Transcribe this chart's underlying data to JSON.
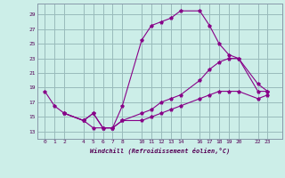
{
  "xlabel": "Windchill (Refroidissement éolien,°C)",
  "ylabel": "",
  "bg_color": "#cceee8",
  "line_color": "#880088",
  "grid_color": "#99bbbb",
  "xticks": [
    0,
    1,
    2,
    4,
    5,
    6,
    7,
    8,
    10,
    11,
    12,
    13,
    14,
    16,
    17,
    18,
    19,
    20,
    22,
    23
  ],
  "yticks": [
    13,
    15,
    17,
    19,
    21,
    23,
    25,
    27,
    29
  ],
  "xlim": [
    -0.8,
    24.5
  ],
  "ylim": [
    12.0,
    30.5
  ],
  "series": [
    {
      "x": [
        0,
        1,
        2,
        4,
        5,
        6,
        7,
        8,
        10,
        11,
        12,
        13,
        14,
        16,
        17,
        18,
        19,
        20,
        22,
        23
      ],
      "y": [
        18.5,
        16.5,
        15.5,
        14.5,
        13.5,
        13.5,
        13.5,
        16.5,
        25.5,
        27.5,
        28.0,
        28.5,
        29.5,
        29.5,
        27.5,
        25.0,
        23.5,
        23.0,
        19.5,
        18.5
      ]
    },
    {
      "x": [
        2,
        4,
        5,
        6,
        7,
        8,
        10,
        11,
        12,
        13,
        14,
        16,
        17,
        18,
        19,
        20,
        22,
        23
      ],
      "y": [
        15.5,
        14.5,
        15.5,
        13.5,
        13.5,
        14.5,
        15.5,
        16.0,
        17.0,
        17.5,
        18.0,
        20.0,
        21.5,
        22.5,
        23.0,
        23.0,
        18.5,
        18.5
      ]
    },
    {
      "x": [
        2,
        4,
        5,
        6,
        7,
        8,
        10,
        11,
        12,
        13,
        14,
        16,
        17,
        18,
        19,
        20,
        22,
        23
      ],
      "y": [
        15.5,
        14.5,
        15.5,
        13.5,
        13.5,
        14.5,
        14.5,
        15.0,
        15.5,
        16.0,
        16.5,
        17.5,
        18.0,
        18.5,
        18.5,
        18.5,
        17.5,
        18.0
      ]
    }
  ]
}
